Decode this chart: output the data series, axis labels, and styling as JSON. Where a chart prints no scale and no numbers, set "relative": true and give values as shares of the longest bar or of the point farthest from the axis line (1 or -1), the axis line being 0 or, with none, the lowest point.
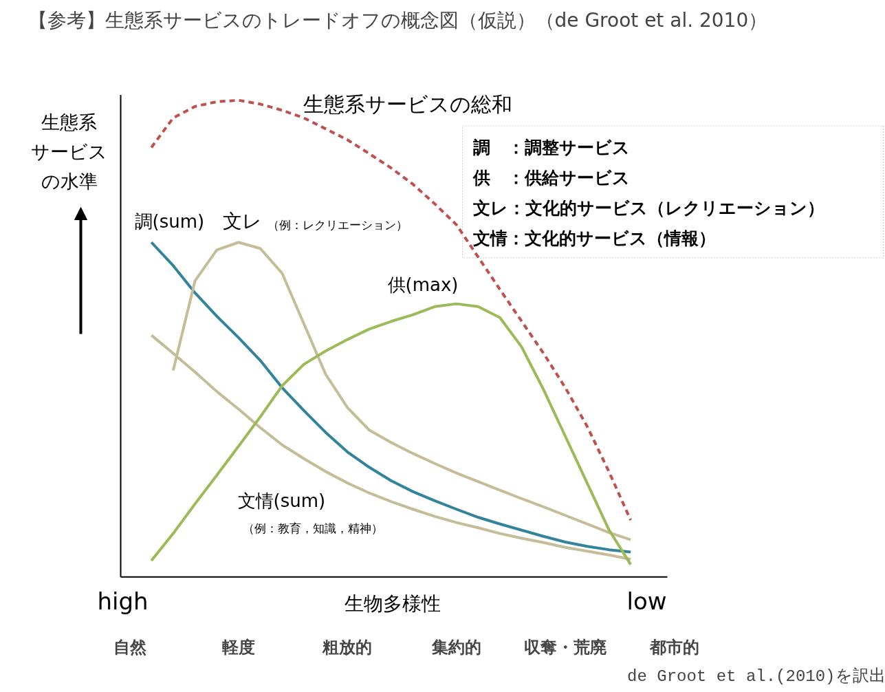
{
  "chart_data": {
    "type": "line",
    "relative": true,
    "title": "【参考】生態系サービスのトレードオフの概念図（仮説）（de Groot et al. 2010）",
    "xlabel": "生物多様性",
    "ylabel": "生態系サービスの水準",
    "categories": [
      "自然",
      null,
      null,
      null,
      null,
      "軽度",
      null,
      null,
      null,
      null,
      "粗放的",
      null,
      null,
      null,
      null,
      "集約的",
      null,
      null,
      null,
      null,
      "収奪・荒廃",
      null,
      null,
      null,
      null,
      "都市的"
    ],
    "series": [
      {
        "name": "生態系サービスの総和",
        "color": "#c0504d",
        "line_style": "dashed",
        "values": [
          null,
          0.901,
          0.963,
          0.987,
          0.997,
          1.0,
          0.992,
          0.979,
          0.963,
          0.94,
          0.917,
          0.888,
          0.858,
          0.824,
          0.783,
          0.739,
          0.671,
          0.603,
          0.536,
          0.469,
          0.397,
          0.316,
          0.221,
          0.119,
          null,
          null
        ]
      },
      {
        "name": "調(sum)",
        "color": "#31849b",
        "values": [
          null,
          0.702,
          0.653,
          0.596,
          0.547,
          0.502,
          0.454,
          0.397,
          0.349,
          0.303,
          0.262,
          0.23,
          0.202,
          0.179,
          0.16,
          0.142,
          0.125,
          0.111,
          0.098,
          0.085,
          0.073,
          0.064,
          0.057,
          0.052,
          null,
          null
        ]
      },
      {
        "name": "文レ",
        "color": "#c4bd97",
        "values": [
          null,
          null,
          0.433,
          0.621,
          0.686,
          0.702,
          0.689,
          0.637,
          0.531,
          0.425,
          0.355,
          0.308,
          0.282,
          0.259,
          0.238,
          0.218,
          0.2,
          0.182,
          0.164,
          0.147,
          0.129,
          0.111,
          0.093,
          0.078,
          null,
          null
        ]
      },
      {
        "name": "文情(sum)",
        "color": "#c4bd97",
        "values": [
          null,
          0.507,
          0.469,
          0.43,
          0.389,
          0.352,
          0.313,
          0.277,
          0.248,
          0.221,
          0.197,
          0.176,
          0.158,
          0.142,
          0.127,
          0.114,
          0.103,
          0.091,
          0.081,
          0.072,
          0.062,
          0.054,
          0.046,
          0.037,
          null,
          null
        ]
      },
      {
        "name": "供(max)",
        "color": "#9bbb59",
        "values": [
          null,
          0.034,
          0.091,
          0.153,
          0.213,
          0.274,
          0.336,
          0.401,
          0.446,
          0.474,
          0.498,
          0.52,
          0.536,
          0.55,
          0.567,
          0.573,
          0.567,
          0.544,
          0.482,
          0.393,
          0.295,
          0.197,
          0.099,
          0.026,
          null,
          null
        ]
      }
    ],
    "annotations": [
      "調　：調整サービス",
      "供　：供給サービス",
      "文レ：文化的サービス（レクリエーション）",
      "文情：文化的サービス（情報）",
      "high",
      "low",
      "（例：レクリエーション）",
      "（例：教育，知識，精神）",
      "de Groot et al.(2010)を訳出"
    ]
  }
}
